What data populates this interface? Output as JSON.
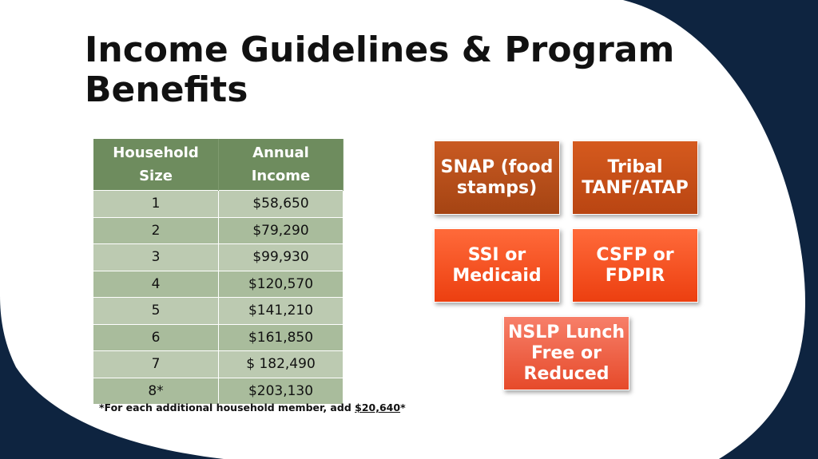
{
  "slide": {
    "title": "Income Guidelines & Program Benefits"
  },
  "table": {
    "headers": [
      "Household Size",
      "Annual Income"
    ],
    "rows": [
      [
        "1",
        "$58,650"
      ],
      [
        "2",
        "$79,290"
      ],
      [
        "3",
        "$99,930"
      ],
      [
        "4",
        "$120,570"
      ],
      [
        "5",
        "$141,210"
      ],
      [
        "6",
        "$161,850"
      ],
      [
        "7",
        "$ 182,490"
      ],
      [
        "8*",
        "$203,130"
      ]
    ],
    "header_color": "#6e8c5e",
    "row_colors": [
      "#bccab1",
      "#a9bc9c"
    ]
  },
  "footnote": {
    "prefix": "*For each additional household member, add ",
    "amount": "$20,640",
    "suffix": "*"
  },
  "programs": {
    "snap": "SNAP (food stamps)",
    "tanf": "Tribal TANF/ATAP",
    "ssi": "SSI or Medicaid",
    "csfp": "CSFP or FDPIR",
    "nslp": "NSLP Lunch Free or Reduced"
  },
  "colors": {
    "background": "#0e2440",
    "panel": "#ffffff",
    "accent_orange": "#e64a1e"
  }
}
